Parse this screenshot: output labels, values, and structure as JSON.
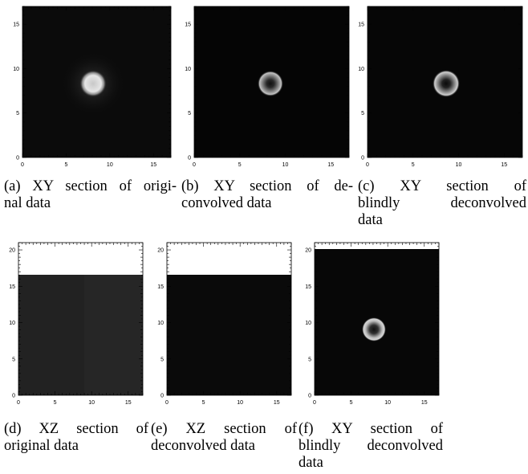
{
  "figure": {
    "panels": [
      {
        "id": "a",
        "caption_lines": [
          "(a) XY section of origi-",
          "nal data"
        ],
        "x_ticks": [
          "0",
          "5",
          "10",
          "15"
        ],
        "y_ticks": [
          "0",
          "5",
          "10",
          "15"
        ],
        "x_range": [
          0,
          17
        ],
        "y_range": [
          0,
          17
        ],
        "content": "bright ring with hot center, blurred",
        "spot_center": [
          8.2,
          8.2
        ],
        "background_color": "#0b0b0b"
      },
      {
        "id": "b",
        "caption_lines": [
          "(b) XY section of de-",
          "convolved data"
        ],
        "x_ticks": [
          "0",
          "5",
          "10",
          "15"
        ],
        "y_ticks": [
          "0",
          "5",
          "10",
          "15"
        ],
        "x_range": [
          0,
          17
        ],
        "y_range": [
          0,
          17
        ],
        "content": "sharper ring with dark center",
        "spot_center": [
          8.2,
          8.2
        ],
        "background_color": "#050505"
      },
      {
        "id": "c",
        "caption_lines": [
          "(c) XY section of",
          "blindly deconvolved",
          "data"
        ],
        "x_ticks": [
          "0",
          "5",
          "10",
          "15"
        ],
        "y_ticks": [
          "0",
          "5",
          "10",
          "15"
        ],
        "x_range": [
          0,
          17
        ],
        "y_range": [
          0,
          17
        ],
        "content": "sharper ring with dark center",
        "spot_center": [
          8.2,
          8.2
        ],
        "background_color": "#060606"
      },
      {
        "id": "d",
        "caption_lines": [
          "(d) XZ section of",
          "original data"
        ],
        "x_ticks": [
          "0",
          "5",
          "10",
          "15"
        ],
        "y_ticks": [
          "0",
          "5",
          "10",
          "15",
          "20"
        ],
        "x_range": [
          0,
          17
        ],
        "y_range": [
          0,
          21
        ],
        "content": "uniform dark-grey block up to z=17",
        "block_top": 17,
        "background_color": "#222222"
      },
      {
        "id": "e",
        "caption_lines": [
          "(e) XZ section of",
          "deconvolved data"
        ],
        "x_ticks": [
          "0",
          "5",
          "10",
          "15"
        ],
        "y_ticks": [
          "0",
          "5",
          "10",
          "15",
          "20"
        ],
        "x_range": [
          0,
          17
        ],
        "y_range": [
          0,
          21
        ],
        "content": "uniform near-black block up to z=17",
        "block_top": 17,
        "background_color": "#0a0a0a"
      },
      {
        "id": "f",
        "caption_lines": [
          "(f) XY section of",
          "blindly deconvolved",
          "data"
        ],
        "x_ticks": [
          "0",
          "5",
          "10",
          "15"
        ],
        "y_ticks": [
          "0",
          "5",
          "10",
          "15",
          "20"
        ],
        "x_range": [
          0,
          17
        ],
        "y_range": [
          0,
          21
        ],
        "content": "ring spot on full black field",
        "spot_center": [
          8.0,
          9.5
        ],
        "background_color": "#070707"
      }
    ]
  }
}
